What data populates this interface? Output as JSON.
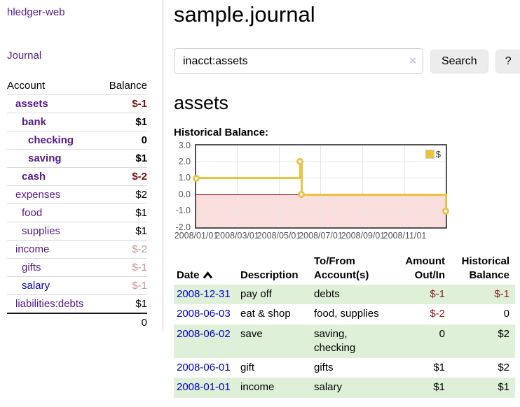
{
  "colors": {
    "link_purple": "#551a8b",
    "link_blue": "#0000cc",
    "negative_strong": "#7f0e0e",
    "negative_dim": "#c98f8f",
    "negative_table": "#8b1a1a",
    "row_green": "#def0d8",
    "series_yellow": "#edc240",
    "negative_region_pink": "#fadddd",
    "zero_line_red": "#8b0000",
    "chart_border": "#545454"
  },
  "sidebar": {
    "brand": "hledger-web",
    "journal_link": "Journal",
    "header": {
      "account": "Account",
      "balance": "Balance"
    },
    "accounts": [
      {
        "name": "assets",
        "balance": "$-1",
        "level": 1,
        "bold": true,
        "balance_style": "neg-strong"
      },
      {
        "name": "bank",
        "balance": "$1",
        "level": 2,
        "bold": true,
        "balance_style": ""
      },
      {
        "name": "checking",
        "balance": "0",
        "level": 3,
        "bold": true,
        "balance_style": ""
      },
      {
        "name": "saving",
        "balance": "$1",
        "level": 3,
        "bold": true,
        "balance_style": ""
      },
      {
        "name": "cash",
        "balance": "$-2",
        "level": 2,
        "bold": true,
        "balance_style": "neg-strong"
      },
      {
        "name": "expenses",
        "balance": "$2",
        "level": 1,
        "bold": false,
        "balance_style": ""
      },
      {
        "name": "food",
        "balance": "$1",
        "level": 2,
        "bold": false,
        "balance_style": ""
      },
      {
        "name": "supplies",
        "balance": "$1",
        "level": 2,
        "bold": false,
        "balance_style": ""
      },
      {
        "name": "income",
        "balance": "$-2",
        "level": 1,
        "bold": false,
        "balance_style": "neg-dim"
      },
      {
        "name": "gifts",
        "balance": "$-1",
        "level": 2,
        "bold": false,
        "balance_style": "neg-dim"
      },
      {
        "name": "salary",
        "balance": "$-1",
        "level": 2,
        "bold": false,
        "balance_style": "neg-dim",
        "blue": true
      },
      {
        "name": "liabilities:debts",
        "balance": "$1",
        "level": 1,
        "bold": false,
        "balance_style": ""
      }
    ],
    "total": "0"
  },
  "main": {
    "title": "sample.journal",
    "search": {
      "value": "inacct:assets",
      "clear": "×",
      "search_button": "Search",
      "help_button": "?"
    },
    "account_title": "assets",
    "chart_label": "Historical Balance:"
  },
  "chart_data": {
    "type": "line",
    "style": "step",
    "title": "Historical Balance",
    "x_range": [
      "2008-01-01",
      "2008-12-31"
    ],
    "ylim": [
      -2,
      3
    ],
    "y_ticks": [
      "3.0",
      "2.0",
      "1.0",
      "0.0",
      "-1.0",
      "-2.0"
    ],
    "x_ticks": [
      "2008/01/01",
      "2008/03/01",
      "2008/05/01",
      "2008/07/01",
      "2008/09/01",
      "2008/11/01"
    ],
    "series": [
      {
        "name": "$",
        "color": "#edc240",
        "points": [
          {
            "x": "2008-01-01",
            "y": 1
          },
          {
            "x": "2008-06-01",
            "y": 2
          },
          {
            "x": "2008-06-03",
            "y": 0
          },
          {
            "x": "2008-12-31",
            "y": -1
          }
        ]
      }
    ],
    "legend": {
      "position": "top-right",
      "label": "$"
    },
    "negative_region": {
      "from": 0,
      "to": -2
    },
    "grid": true
  },
  "register": {
    "columns": [
      {
        "lines": [
          "Date"
        ],
        "align": "left",
        "sort": "asc"
      },
      {
        "lines": [
          "Description"
        ],
        "align": "left"
      },
      {
        "lines": [
          "To/From",
          "Account(s)"
        ],
        "align": "left"
      },
      {
        "lines": [
          "Amount",
          "Out/In"
        ],
        "align": "right"
      },
      {
        "lines": [
          "Historical",
          "Balance"
        ],
        "align": "right"
      }
    ],
    "rows": [
      {
        "date": "2008-12-31",
        "description": "pay off",
        "accounts": "debts",
        "amount": "$-1",
        "amount_negative": true,
        "balance": "$-1",
        "balance_negative": true,
        "shaded": true
      },
      {
        "date": "2008-06-03",
        "description": "eat & shop",
        "accounts": "food, supplies",
        "amount": "$-2",
        "amount_negative": true,
        "balance": "0",
        "balance_negative": false,
        "shaded": false
      },
      {
        "date": "2008-06-02",
        "description": "save",
        "accounts": "saving, checking",
        "amount": "0",
        "amount_negative": false,
        "balance": "$2",
        "balance_negative": false,
        "shaded": true
      },
      {
        "date": "2008-06-01",
        "description": "gift",
        "accounts": "gifts",
        "amount": "$1",
        "amount_negative": false,
        "balance": "$2",
        "balance_negative": false,
        "shaded": false
      },
      {
        "date": "2008-01-01",
        "description": "income",
        "accounts": "salary",
        "amount": "$1",
        "amount_negative": false,
        "balance": "$1",
        "balance_negative": false,
        "shaded": true
      }
    ]
  }
}
